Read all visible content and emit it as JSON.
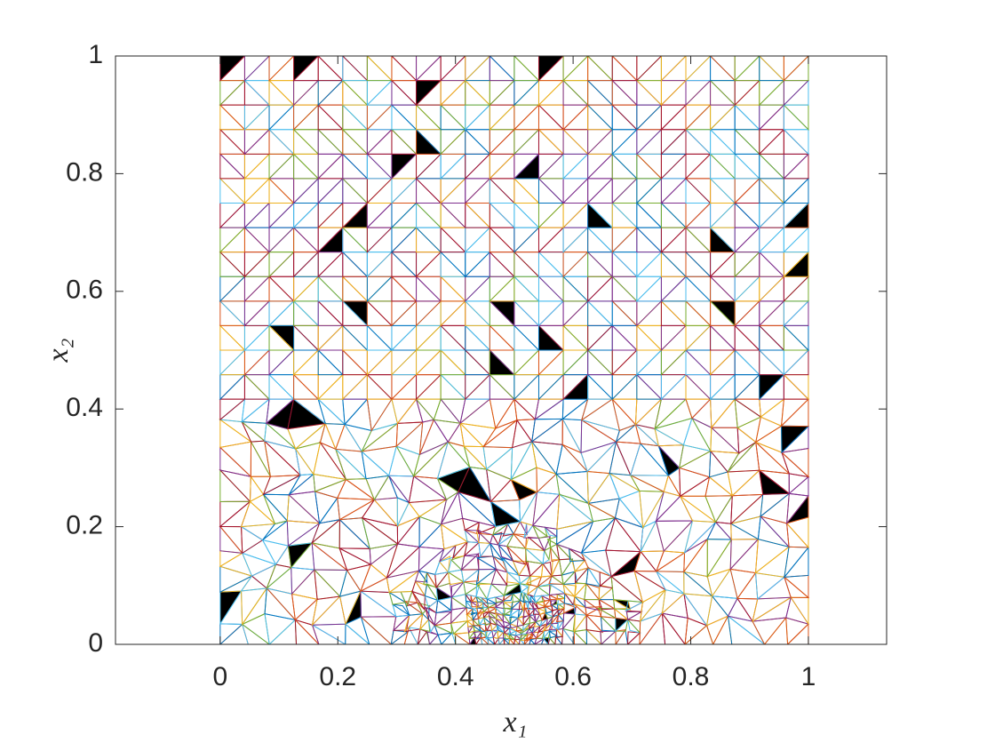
{
  "chart_data": {
    "type": "mesh",
    "xlabel": "x₁",
    "ylabel": "x₂",
    "xlim": [
      -0.178,
      1.133
    ],
    "ylim": [
      0,
      1
    ],
    "xticks": [
      0,
      0.2,
      0.4,
      0.6,
      0.8,
      1
    ],
    "yticks": [
      0,
      0.2,
      0.4,
      0.6,
      0.8,
      1
    ],
    "colors": [
      "#0072BD",
      "#D95319",
      "#EDB120",
      "#7E2F8E",
      "#77AC30",
      "#4DBEEE",
      "#A2142F"
    ],
    "highlight_color": "#000000"
  }
}
